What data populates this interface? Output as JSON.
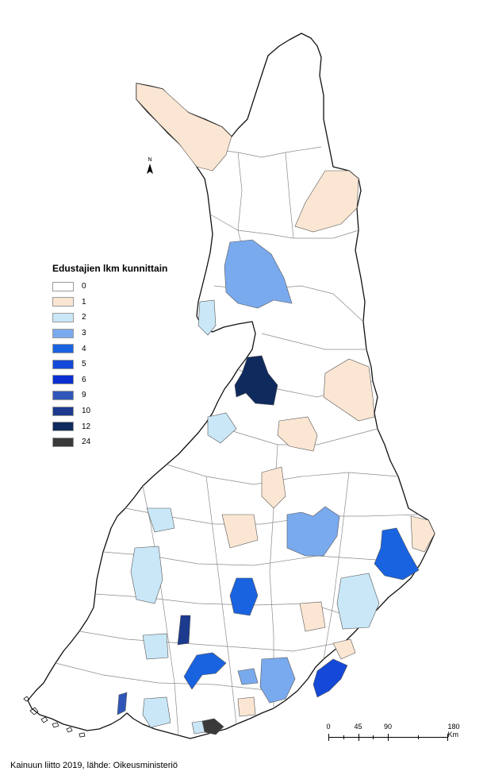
{
  "legend": {
    "title": "Edustajien lkm kunnittain",
    "classes": [
      {
        "label": "0",
        "color": "#ffffff"
      },
      {
        "label": "1",
        "color": "#fbe6d3"
      },
      {
        "label": "2",
        "color": "#c9e7f7"
      },
      {
        "label": "3",
        "color": "#7aaaee"
      },
      {
        "label": "4",
        "color": "#1a63e0"
      },
      {
        "label": "5",
        "color": "#1448d8"
      },
      {
        "label": "6",
        "color": "#0a2fd0"
      },
      {
        "label": "9",
        "color": "#2f56b8"
      },
      {
        "label": "10",
        "color": "#1c3a8e"
      },
      {
        "label": "12",
        "color": "#0f2a5c"
      },
      {
        "label": "24",
        "color": "#3a3a3a"
      }
    ]
  },
  "scale": {
    "labels": [
      "0",
      "45",
      "90",
      "180 Km"
    ]
  },
  "north_label": "N",
  "source": "Kainuun liitto 2019, lähde: Oikeusministeriö",
  "colors": {
    "outline": "#111111",
    "boundary": "#8a8a8a"
  }
}
